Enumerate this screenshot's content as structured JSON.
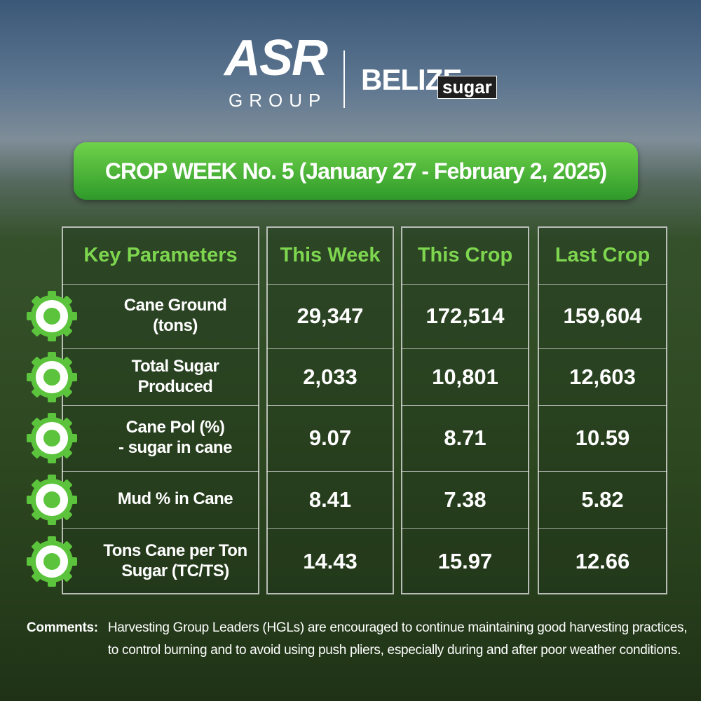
{
  "logo": {
    "primary": "ASR",
    "primary_sub": "GROUP",
    "secondary": "BELIZE",
    "secondary_sub": "sugar"
  },
  "banner": {
    "title": "CROP WEEK No. 5 (January 27 - February 2, 2025)"
  },
  "table": {
    "headers": [
      "Key Parameters",
      "This Week",
      "This Crop",
      "Last Crop"
    ],
    "rows": [
      {
        "label": [
          "Cane Ground",
          "(tons)"
        ],
        "values": [
          "29,347",
          "172,514",
          "159,604"
        ]
      },
      {
        "label": [
          "Total Sugar",
          "Produced"
        ],
        "values": [
          "2,033",
          "10,801",
          "12,603"
        ]
      },
      {
        "label": [
          "Cane Pol (%)",
          "- sugar in cane"
        ],
        "values": [
          "9.07",
          "8.71",
          "10.59"
        ]
      },
      {
        "label": [
          "Mud % in Cane"
        ],
        "values": [
          "8.41",
          "7.38",
          "5.82"
        ]
      },
      {
        "label": [
          "Tons Cane per Ton",
          "Sugar (TC/TS)"
        ],
        "values": [
          "14.43",
          "15.97",
          "12.66"
        ]
      }
    ]
  },
  "comments": {
    "label": "Comments:",
    "text": "Harvesting Group Leaders (HGLs) are encouraged to continue maintaining good harvesting practices, to control burning and to avoid using push pliers, especially during and after poor weather conditions."
  }
}
